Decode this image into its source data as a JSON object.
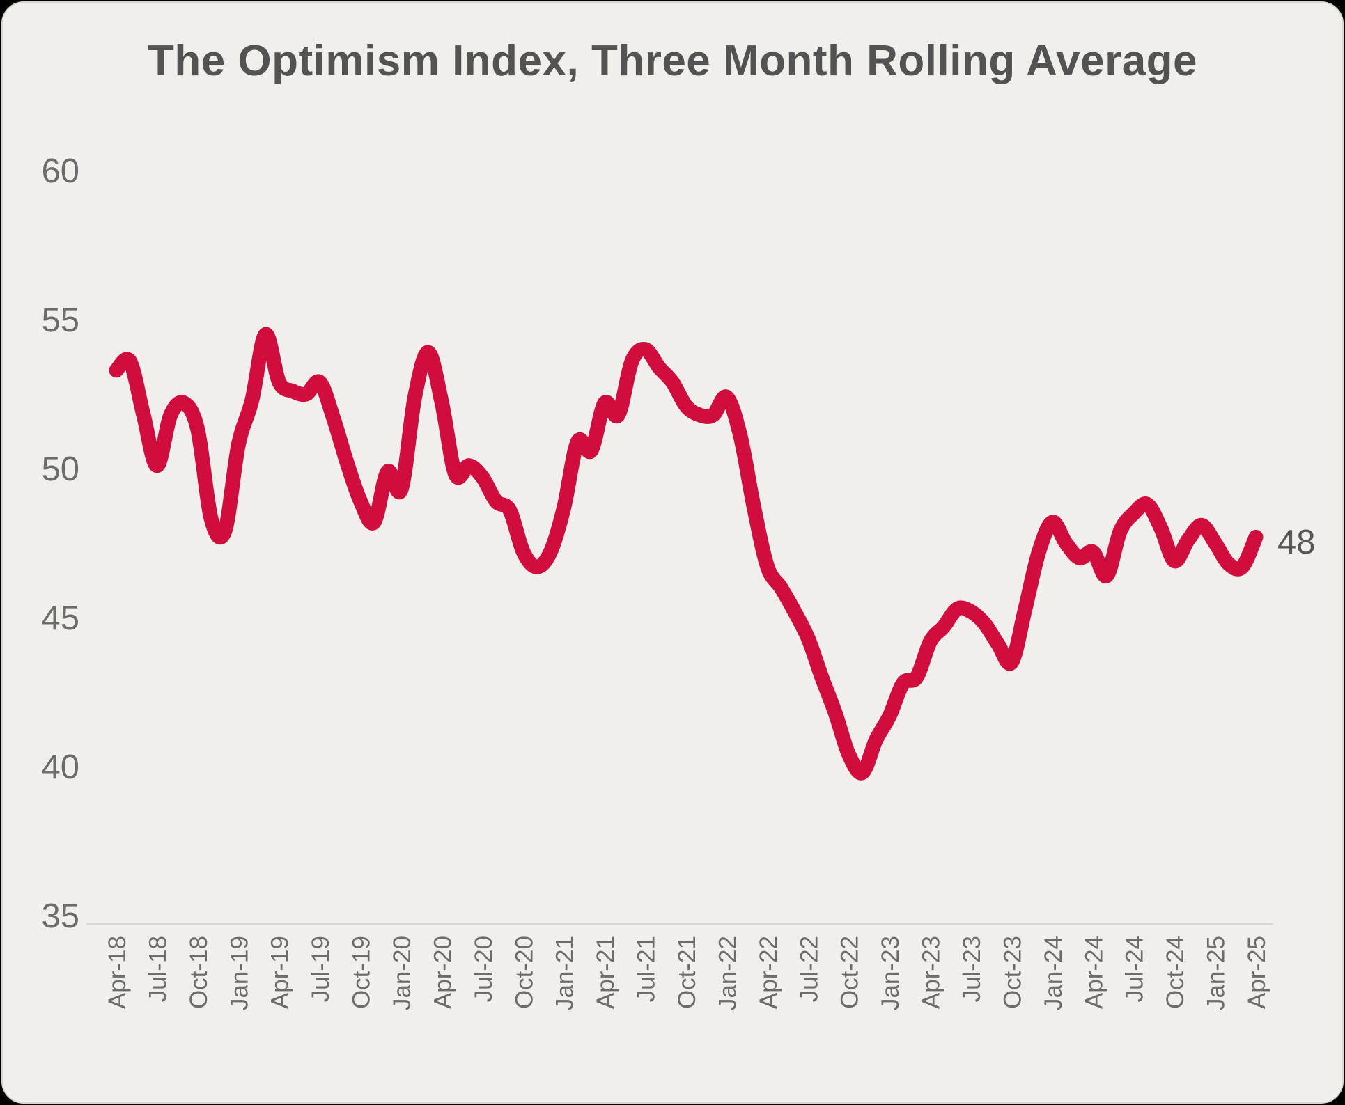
{
  "page": {
    "background_color": "#000000",
    "card_background": "#F0EFEC",
    "card_border_color": "#d8d7d4"
  },
  "chart": {
    "title": "The Optimism Index, Three Month Rolling Average",
    "end_label": "48",
    "colors": {
      "line": "#D00D3D",
      "title_text": "#535353",
      "axis_text": "#6C6C6C",
      "axis_line": "#D8D8D8",
      "end_label_text": "#575757"
    }
  },
  "chart_data": {
    "type": "line",
    "title": "The Optimism Index, Three Month Rolling Average",
    "xlabel": "",
    "ylabel": "",
    "ylim": [
      35,
      60
    ],
    "y_ticks": [
      35,
      40,
      45,
      50,
      55,
      60
    ],
    "grid": "off",
    "legend": "none",
    "line_color": "#D00D3D",
    "annotations": [
      {
        "text": "48",
        "x": "Apr-25",
        "y": 47.7
      }
    ],
    "x_tick_labels": [
      "Apr-18",
      "Jul-18",
      "Oct-18",
      "Jan-19",
      "Apr-19",
      "Jul-19",
      "Oct-19",
      "Jan-20",
      "Apr-20",
      "Jul-20",
      "Oct-20",
      "Jan-21",
      "Apr-21",
      "Jul-21",
      "Oct-21",
      "Jan-22",
      "Apr-22",
      "Jul-22",
      "Oct-22",
      "Jan-23",
      "Apr-23",
      "Jul-23",
      "Oct-23",
      "Jan-24",
      "Apr-24",
      "Jul-24",
      "Oct-24",
      "Jan-25",
      "Apr-25"
    ],
    "x": [
      "Apr-18",
      "May-18",
      "Jun-18",
      "Jul-18",
      "Aug-18",
      "Sep-18",
      "Oct-18",
      "Nov-18",
      "Dec-18",
      "Jan-19",
      "Feb-19",
      "Mar-19",
      "Apr-19",
      "May-19",
      "Jun-19",
      "Jul-19",
      "Aug-19",
      "Sep-19",
      "Oct-19",
      "Nov-19",
      "Dec-19",
      "Jan-20",
      "Feb-20",
      "Mar-20",
      "Apr-20",
      "May-20",
      "Jun-20",
      "Jul-20",
      "Aug-20",
      "Sep-20",
      "Oct-20",
      "Nov-20",
      "Dec-20",
      "Jan-21",
      "Feb-21",
      "Mar-21",
      "Apr-21",
      "May-21",
      "Jun-21",
      "Jul-21",
      "Aug-21",
      "Sep-21",
      "Oct-21",
      "Nov-21",
      "Dec-21",
      "Jan-22",
      "Feb-22",
      "Mar-22",
      "Apr-22",
      "May-22",
      "Jun-22",
      "Jul-22",
      "Aug-22",
      "Sep-22",
      "Oct-22",
      "Nov-22",
      "Dec-22",
      "Jan-23",
      "Feb-23",
      "Mar-23",
      "Apr-23",
      "May-23",
      "Jun-23",
      "Jul-23",
      "Aug-23",
      "Sep-23",
      "Oct-23",
      "Nov-23",
      "Dec-23",
      "Jan-24",
      "Feb-24",
      "Mar-24",
      "Apr-24",
      "May-24",
      "Jun-24",
      "Jul-24",
      "Aug-24",
      "Sep-24",
      "Oct-24",
      "Nov-24",
      "Dec-24",
      "Jan-25",
      "Feb-25",
      "Mar-25",
      "Apr-25"
    ],
    "values": [
      53.3,
      53.6,
      51.8,
      50.1,
      51.8,
      52.2,
      51.3,
      48.3,
      47.9,
      50.8,
      52.3,
      54.5,
      52.9,
      52.6,
      52.5,
      52.9,
      51.7,
      50.2,
      48.9,
      48.2,
      49.9,
      49.3,
      52.4,
      53.9,
      52.2,
      49.8,
      50.1,
      49.7,
      48.9,
      48.6,
      47.2,
      46.7,
      47.2,
      48.7,
      50.9,
      50.6,
      52.2,
      51.8,
      53.6,
      54.0,
      53.4,
      52.9,
      52.1,
      51.8,
      51.8,
      52.4,
      51.1,
      48.7,
      46.7,
      46.0,
      45.2,
      44.3,
      43.0,
      41.8,
      40.4,
      39.8,
      40.9,
      41.7,
      42.8,
      43.0,
      44.2,
      44.7,
      45.3,
      45.2,
      44.8,
      44.1,
      43.5,
      45.3,
      47.2,
      48.2,
      47.5,
      47.0,
      47.2,
      46.4,
      47.9,
      48.5,
      48.8,
      48.0,
      46.9,
      47.6,
      48.1,
      47.5,
      46.8,
      46.7,
      47.7
    ]
  }
}
